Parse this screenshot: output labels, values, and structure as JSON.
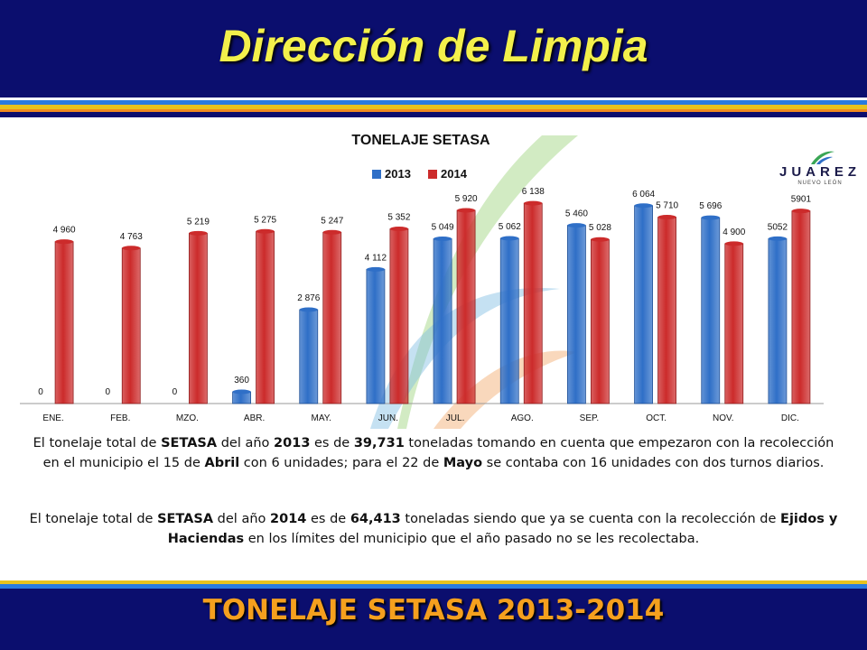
{
  "title": "Dirección de Limpia",
  "footer_title": "TONELAJE  SETASA 2013-2014",
  "logo": {
    "word": "JUAREZ",
    "sub": "NUEVO LEÓN"
  },
  "colors": {
    "band": "#0b0e6e",
    "title_text": "#f3f04b",
    "footer_text": "#f5a01e",
    "series_2013": "#2f6fc7",
    "series_2014": "#cc2b2b"
  },
  "chart_data": {
    "type": "bar",
    "title": "TONELAJE SETASA",
    "categories": [
      "ENE.",
      "FEB.",
      "MZO.",
      "ABR.",
      "MAY.",
      "JUN.",
      "JUL.",
      "AGO.",
      "SEP.",
      "OCT.",
      "NOV.",
      "DIC."
    ],
    "series": [
      {
        "name": "2013",
        "values": [
          0,
          0,
          0,
          360,
          2876,
          4112,
          5049,
          5062,
          5460,
          6064,
          5696,
          5052
        ],
        "labels": [
          "0",
          "0",
          "0",
          "360",
          "2 876",
          "4 112",
          "5 049",
          "5 062",
          "5 460",
          "6 064",
          "5 696",
          "5052"
        ]
      },
      {
        "name": "2014",
        "values": [
          4960,
          4763,
          5219,
          5275,
          5247,
          5352,
          5920,
          6138,
          5028,
          5710,
          4900,
          5901
        ],
        "labels": [
          "4 960",
          "4 763",
          "5 219",
          "5 275",
          "5 247",
          "5 352",
          "5 920",
          "6 138",
          "5 028",
          "5 710",
          "4 900",
          "5901"
        ]
      }
    ],
    "ylim": [
      0,
      6500
    ],
    "legend": "top-center",
    "grid": false
  },
  "paragraphs": [
    [
      {
        "t": "El tonelaje total de ",
        "b": false
      },
      {
        "t": "SETASA",
        "b": true
      },
      {
        "t": " del año ",
        "b": false
      },
      {
        "t": "2013",
        "b": true
      },
      {
        "t": " es de ",
        "b": false
      },
      {
        "t": "39,731",
        "b": true
      },
      {
        "t": " toneladas tomando en cuenta que empezaron con la recolección en el municipio el 15 de ",
        "b": false
      },
      {
        "t": "Abril",
        "b": true
      },
      {
        "t": "  con 6 unidades; para el 22 de ",
        "b": false
      },
      {
        "t": "Mayo",
        "b": true
      },
      {
        "t": " se contaba con 16 unidades con dos turnos diarios.",
        "b": false
      }
    ],
    [
      {
        "t": "El tonelaje total de ",
        "b": false
      },
      {
        "t": "SETASA",
        "b": true
      },
      {
        "t": " del año ",
        "b": false
      },
      {
        "t": "2014",
        "b": true
      },
      {
        "t": " es de ",
        "b": false
      },
      {
        "t": "64,413",
        "b": true
      },
      {
        "t": " toneladas siendo que ya se cuenta con la recolección de ",
        "b": false
      },
      {
        "t": "Ejidos y Haciendas",
        "b": true
      },
      {
        "t": " en los límites del municipio que el año pasado no se les recolectaba.",
        "b": false
      }
    ]
  ]
}
